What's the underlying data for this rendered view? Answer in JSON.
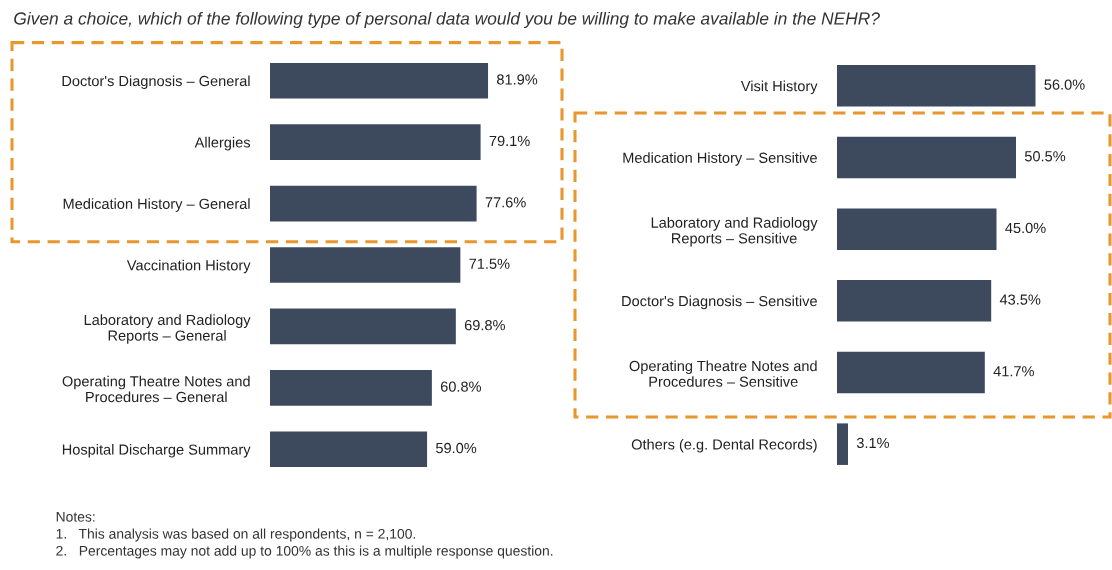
{
  "chart_data": [
    {
      "type": "bar",
      "orientation": "horizontal",
      "title": "Given a choice, which of the following type of personal data would you be willing to make available in the NEHR?",
      "categories": [
        "Doctor's Diagnosis – General",
        "Allergies",
        "Medication History – General",
        "Vaccination History",
        "Laboratory and Radiology\nReports – General",
        "Operating Theatre Notes and\nProcedures – General",
        "Hospital Discharge Summary"
      ],
      "values": [
        81.9,
        79.1,
        77.6,
        71.5,
        69.8,
        60.8,
        59.0
      ],
      "value_labels": [
        "81.9%",
        "79.1%",
        "77.6%",
        "71.5%",
        "69.8%",
        "60.8%",
        "59.0%"
      ],
      "color": "#3d4a5e",
      "tick_labels": "y",
      "annotations": [
        "Notes:",
        "1.   This analysis was based on all respondents, n = 2,100.",
        "2.   Percentages may not add up to 100% as this is a multiple response question."
      ]
    },
    {
      "type": "bar",
      "orientation": "horizontal",
      "categories": [
        "Visit History",
        "Medication History – Sensitive",
        "Laboratory and Radiology\nReports – Sensitive",
        "Doctor's Diagnosis – Sensitive",
        "Operating Theatre Notes and\nProcedures – Sensitive",
        "Others (e.g. Dental Records)"
      ],
      "values": [
        56.0,
        50.5,
        45.0,
        43.5,
        41.7,
        3.1
      ],
      "value_labels": [
        "56.0%",
        "50.5%",
        "45.0%",
        "43.5%",
        "41.7%",
        "3.1%"
      ],
      "color": "#3d4a5e",
      "tick_labels": "y"
    }
  ]
}
